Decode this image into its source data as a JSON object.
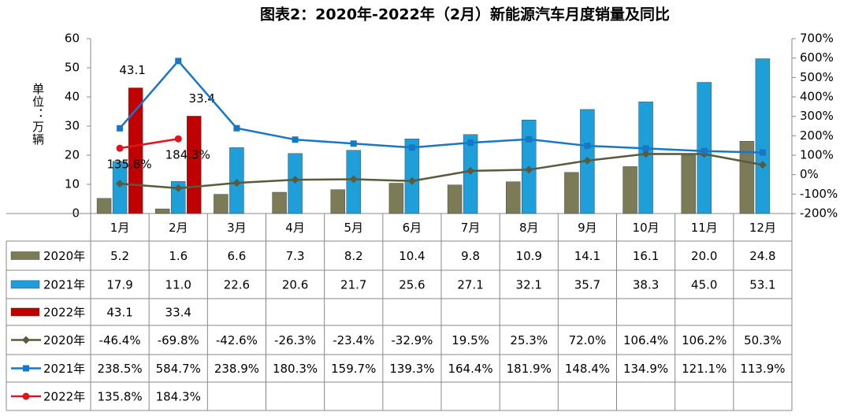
{
  "chart_data": {
    "type": "bar",
    "title": "图表2：2020年-2022年（2月）新能源汽车月度销量及同比",
    "y_label": "单位：万辆",
    "categories": [
      "1月",
      "2月",
      "3月",
      "4月",
      "5月",
      "6月",
      "7月",
      "8月",
      "9月",
      "10月",
      "11月",
      "12月"
    ],
    "ylim": [
      0,
      60
    ],
    "yticks": [
      0,
      10,
      20,
      30,
      40,
      50,
      60
    ],
    "y2lim": [
      -200,
      700
    ],
    "y2ticks": [
      {
        "value": -200,
        "label": "-200%"
      },
      {
        "value": -100,
        "label": "-100%"
      },
      {
        "value": 0,
        "label": "0%"
      },
      {
        "value": 100,
        "label": "100%"
      },
      {
        "value": 200,
        "label": "200%"
      },
      {
        "value": 300,
        "label": "300%"
      },
      {
        "value": 400,
        "label": "400%"
      },
      {
        "value": 500,
        "label": "500%"
      },
      {
        "value": 600,
        "label": "600%"
      },
      {
        "value": 700,
        "label": "700%"
      }
    ],
    "grid": false,
    "series": [
      {
        "name": "2020年",
        "type": "bar",
        "color": "#7b7b57",
        "values": [
          5.2,
          1.6,
          6.6,
          7.3,
          8.2,
          10.4,
          9.8,
          10.9,
          14.1,
          16.1,
          20.0,
          24.8
        ],
        "value_labels": [
          "5.2",
          "1.6",
          "6.6",
          "7.3",
          "8.2",
          "10.4",
          "9.8",
          "10.9",
          "14.1",
          "16.1",
          "20.0",
          "24.8"
        ]
      },
      {
        "name": "2021年",
        "type": "bar",
        "color": "#1e9fd9",
        "values": [
          17.9,
          11.0,
          22.6,
          20.6,
          21.7,
          25.6,
          27.1,
          32.1,
          35.7,
          38.3,
          45.0,
          53.1
        ],
        "value_labels": [
          "17.9",
          "11.0",
          "22.6",
          "20.6",
          "21.7",
          "25.6",
          "27.1",
          "32.1",
          "35.7",
          "38.3",
          "45.0",
          "53.1"
        ]
      },
      {
        "name": "2022年",
        "type": "bar",
        "color": "#c00000",
        "values": [
          43.1,
          33.4,
          null,
          null,
          null,
          null,
          null,
          null,
          null,
          null,
          null,
          null
        ],
        "value_labels": [
          "43.1",
          "33.4",
          null,
          null,
          null,
          null,
          null,
          null,
          null,
          null,
          null,
          null
        ],
        "data_labels": true
      },
      {
        "name": "2020年",
        "type": "line",
        "axis": "y2",
        "marker": "diamond",
        "color": "#5a5a3c",
        "values": [
          -46.4,
          -69.8,
          -42.6,
          -26.3,
          -23.4,
          -32.9,
          19.5,
          25.3,
          72.0,
          106.4,
          106.2,
          50.3
        ],
        "value_labels": [
          "-46.4%",
          "-69.8%",
          "-42.6%",
          "-26.3%",
          "-23.4%",
          "-32.9%",
          "19.5%",
          "25.3%",
          "72.0%",
          "106.4%",
          "106.2%",
          "50.3%"
        ]
      },
      {
        "name": "2021年",
        "type": "line",
        "axis": "y2",
        "marker": "square",
        "color": "#1777c6",
        "values": [
          238.5,
          584.7,
          238.9,
          180.3,
          159.7,
          139.3,
          164.4,
          181.9,
          148.4,
          134.9,
          121.1,
          113.9
        ],
        "value_labels": [
          "238.5%",
          "584.7%",
          "238.9%",
          "180.3%",
          "159.7%",
          "139.3%",
          "164.4%",
          "181.9%",
          "148.4%",
          "134.9%",
          "121.1%",
          "113.9%"
        ]
      },
      {
        "name": "2022年",
        "type": "line",
        "axis": "y2",
        "marker": "circle",
        "color": "#e0141e",
        "values": [
          135.8,
          184.3,
          null,
          null,
          null,
          null,
          null,
          null,
          null,
          null,
          null,
          null
        ],
        "value_labels": [
          "135.8%",
          "184.3%",
          null,
          null,
          null,
          null,
          null,
          null,
          null,
          null,
          null,
          null
        ],
        "data_labels": true
      }
    ]
  }
}
